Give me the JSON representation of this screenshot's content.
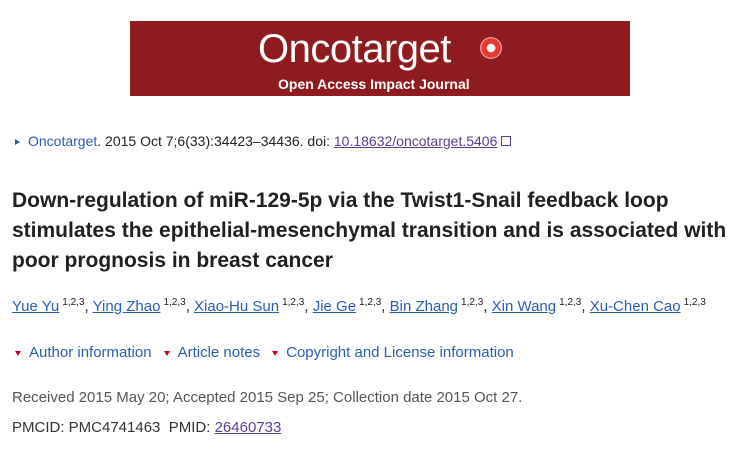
{
  "banner": {
    "title": "Oncotarget",
    "subtitle": "Open Access Impact Journal"
  },
  "citation": {
    "journal": "Oncotarget",
    "details": ". 2015 Oct 7;6(33):34423–34436. doi: ",
    "doi": "10.18632/oncotarget.5406"
  },
  "article_title": "Down-regulation of miR-129-5p via the Twist1-Snail feedback loop stimulates the epithelial-mesenchymal transition and is associated with poor prognosis in breast cancer",
  "author_separator": ",",
  "authors": [
    {
      "name": "Yue Yu",
      "affiliations": "1,2,3"
    },
    {
      "name": "Ying Zhao",
      "affiliations": "1,2,3"
    },
    {
      "name": "Xiao-Hu Sun",
      "affiliations": "1,2,3"
    },
    {
      "name": "Jie Ge",
      "affiliations": "1,2,3"
    },
    {
      "name": "Bin Zhang",
      "affiliations": "1,2,3"
    },
    {
      "name": "Xin Wang",
      "affiliations": "1,2,3"
    },
    {
      "name": "Xu-Chen Cao",
      "affiliations": "1,2,3"
    }
  ],
  "info_links": [
    "Author information",
    "Article notes",
    "Copyright and License information"
  ],
  "dates": "Received 2015 May 20; Accepted 2015 Sep 25; Collection date 2015 Oct 27.",
  "ids": {
    "pmcid": "PMCID: PMC4741463",
    "pmid_label": "PMID: ",
    "pmid": "26460733"
  }
}
